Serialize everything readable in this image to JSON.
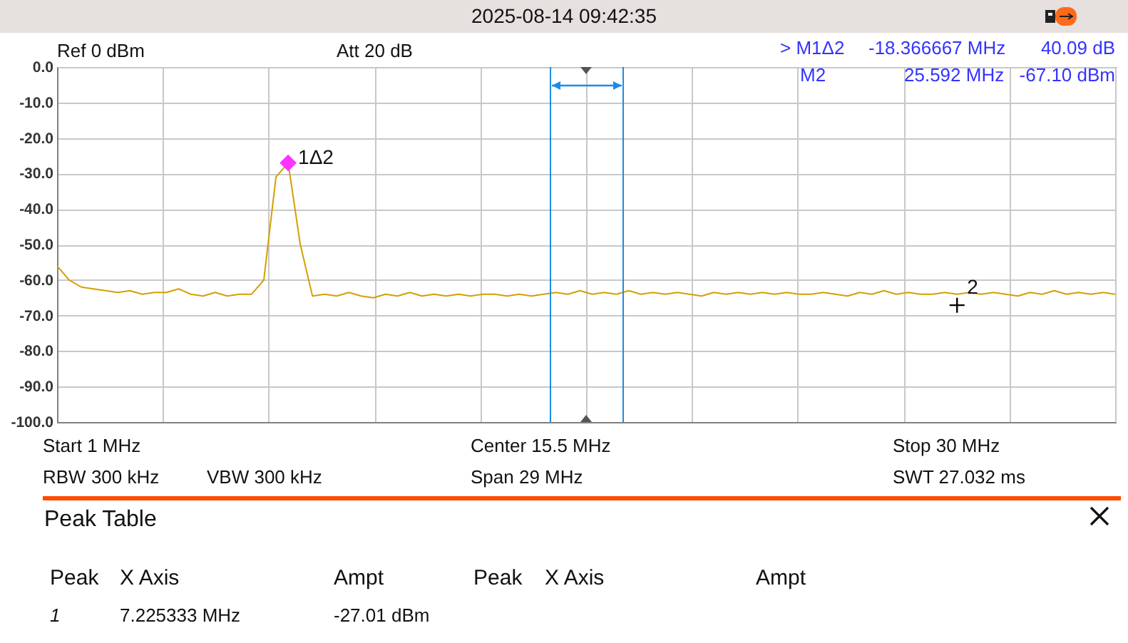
{
  "chart_data": {
    "type": "line",
    "title": "2025-08-14 09:42:35",
    "annotations": [
      "Ref 0 dBm",
      "Att 20 dB",
      "> M1Δ2",
      "-18.366667 MHz",
      "40.09 dB",
      "M2",
      "25.592 MHz",
      "-67.10 dBm",
      "Start 1 MHz",
      "Center 15.5 MHz",
      "Stop 30 MHz",
      "RBW 300 kHz",
      "VBW 300 kHz",
      "Span 29 MHz",
      "SWT 27.032 ms",
      "Peak Table",
      "Peak",
      "X Axis",
      "Ampt",
      "Peak",
      "X Axis",
      "Ampt",
      "1",
      "7.225333 MHz",
      "-27.01 dBm"
    ],
    "categories": [
      null,
      null,
      null,
      null,
      null,
      null,
      null,
      null,
      null,
      null,
      null,
      null,
      null,
      null,
      null,
      null,
      null,
      null,
      null,
      null,
      null,
      null,
      null,
      null,
      null,
      null,
      null,
      null,
      null,
      null,
      null,
      null,
      null,
      null,
      null,
      null,
      null,
      null,
      null,
      null,
      null,
      null,
      null,
      null,
      null,
      null,
      null,
      null,
      null,
      null,
      null,
      null,
      null,
      null,
      null,
      null,
      null,
      null,
      null,
      null,
      null,
      null,
      null,
      null,
      null,
      null,
      null,
      null,
      null,
      null,
      null,
      null,
      null,
      null,
      null,
      null,
      null,
      null,
      null,
      null,
      null,
      null,
      null,
      null,
      null,
      null,
      null,
      null
    ],
    "series": [
      {
        "color": "#d4a000",
        "values": [
          -56,
          -60,
          -62,
          -62.5,
          -63,
          -63.5,
          -63,
          -64,
          -63.5,
          -63.5,
          -62.5,
          -64,
          -64.5,
          -63.5,
          -64.5,
          -64,
          -64,
          -60,
          -31,
          -27,
          -50,
          -64.5,
          -64,
          -64.5,
          -63.5,
          -64.5,
          -65,
          -64,
          -64.5,
          -63.5,
          -64.5,
          -64,
          -64.5,
          -64,
          -64.5,
          -64,
          -64,
          -64.5,
          -64,
          -64.5,
          -64,
          -63.5,
          -64,
          -63,
          -64,
          -63.5,
          -64,
          -63,
          -64,
          -63.5,
          -64,
          -63.5,
          -64,
          -64.5,
          -63.5,
          -64,
          -63.5,
          -64,
          -63.5,
          -64,
          -63.5,
          -64,
          -64,
          -63.5,
          -64,
          -64.5,
          -63.5,
          -64,
          -63,
          -64,
          -63.5,
          -64,
          -64,
          -63.5,
          -64,
          -63.5,
          -64,
          -63.5,
          -64,
          -64.5,
          -63.5,
          -64,
          -63,
          -64,
          -63.5,
          -64,
          -63.5,
          -64
        ]
      },
      {
        "type": "scatter",
        "name": "1Δ2",
        "color": "#ff33ff",
        "marker": "diamond",
        "values": [
          null,
          null,
          null,
          null,
          null,
          null,
          null,
          null,
          null,
          null,
          null,
          null,
          null,
          null,
          null,
          null,
          null,
          null,
          null,
          -27,
          null,
          null,
          null,
          null,
          null,
          null,
          null,
          null,
          null,
          null,
          null,
          null,
          null,
          null,
          null,
          null,
          null,
          null,
          null,
          null,
          null,
          null,
          null,
          null,
          null,
          null,
          null,
          null,
          null,
          null,
          null,
          null,
          null,
          null,
          null,
          null,
          null,
          null,
          null,
          null,
          null,
          null,
          null,
          null,
          null,
          null,
          null,
          null,
          null,
          null,
          null,
          null,
          null,
          null,
          null,
          null,
          null,
          null,
          null,
          null,
          null,
          null,
          null,
          null,
          null,
          null,
          null,
          null
        ]
      },
      {
        "type": "scatter",
        "name": "2",
        "color": "#000000",
        "marker": "cross",
        "values": [
          null,
          null,
          null,
          null,
          null,
          null,
          null,
          null,
          null,
          null,
          null,
          null,
          null,
          null,
          null,
          null,
          null,
          null,
          null,
          null,
          null,
          null,
          null,
          null,
          null,
          null,
          null,
          null,
          null,
          null,
          null,
          null,
          null,
          null,
          null,
          null,
          null,
          null,
          null,
          null,
          null,
          null,
          null,
          null,
          null,
          null,
          null,
          null,
          null,
          null,
          null,
          null,
          null,
          null,
          null,
          null,
          null,
          null,
          null,
          null,
          null,
          null,
          null,
          null,
          null,
          null,
          null,
          null,
          null,
          null,
          null,
          null,
          null,
          null,
          -67.1,
          null,
          null,
          null,
          null,
          null,
          null,
          null,
          null,
          null,
          null,
          null,
          null,
          null
        ]
      }
    ],
    "ylim": [
      -100,
      0
    ],
    "yticks": [
      {
        "value": 0,
        "label": "0.0"
      },
      {
        "value": -10,
        "label": "-10.0"
      },
      {
        "value": -20,
        "label": "-20.0"
      },
      {
        "value": -30,
        "label": "-30.0"
      },
      {
        "value": -40,
        "label": "-40.0"
      },
      {
        "value": -50,
        "label": "-50.0"
      },
      {
        "value": -60,
        "label": "-60.0"
      },
      {
        "value": -70,
        "label": "-70.0"
      },
      {
        "value": -80,
        "label": "-80.0"
      },
      {
        "value": -90,
        "label": "-90.0"
      },
      {
        "value": -100,
        "label": "-100.0"
      }
    ],
    "grid": true
  }
}
